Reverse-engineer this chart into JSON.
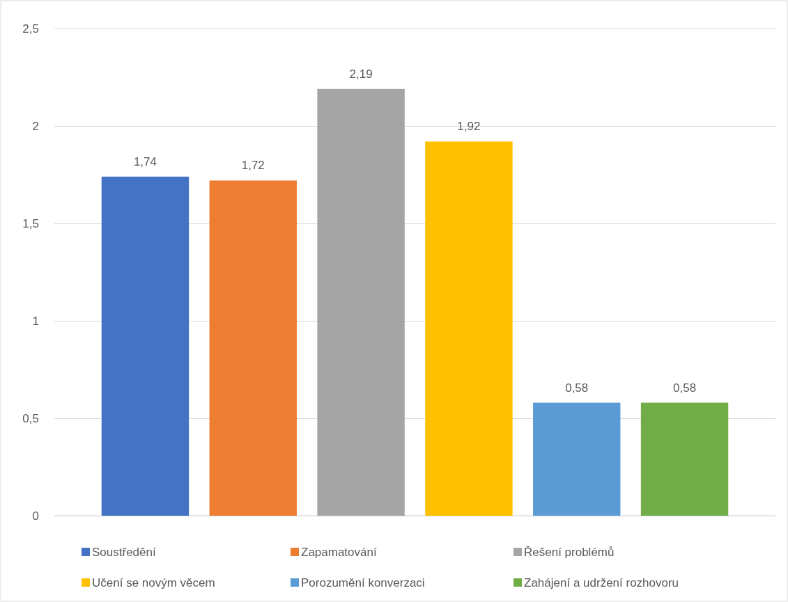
{
  "chart_data": {
    "type": "bar",
    "categories": [
      null
    ],
    "series": [
      {
        "name": "Soustředění",
        "color": "#4472c4",
        "values": [
          1.74
        ],
        "value_labels": [
          "1,74"
        ]
      },
      {
        "name": "Zapamatování",
        "color": "#ed7d31",
        "values": [
          1.72
        ],
        "value_labels": [
          "1,72"
        ]
      },
      {
        "name": "Řešení problémů",
        "color": "#a5a5a5",
        "values": [
          2.19
        ],
        "value_labels": [
          "2,19"
        ]
      },
      {
        "name": "Učení se novým věcem",
        "color": "#ffc000",
        "values": [
          1.92
        ],
        "value_labels": [
          "1,92"
        ]
      },
      {
        "name": "Porozumění konverzaci",
        "color": "#5b9bd5",
        "values": [
          0.58
        ],
        "value_labels": [
          "0,58"
        ]
      },
      {
        "name": "Zahájení a udržení rozhovoru",
        "color": "#70ad47",
        "values": [
          0.58
        ],
        "value_labels": [
          "0,58"
        ]
      }
    ],
    "ylim": [
      0,
      2.5
    ],
    "yticks": [
      0,
      {
        "value": 0.5,
        "label": "0,5"
      },
      1,
      {
        "value": 1.5,
        "label": "1,5"
      },
      2,
      {
        "value": 2.5,
        "label": "2,5"
      }
    ],
    "grid": "y",
    "legend": "bottom"
  }
}
